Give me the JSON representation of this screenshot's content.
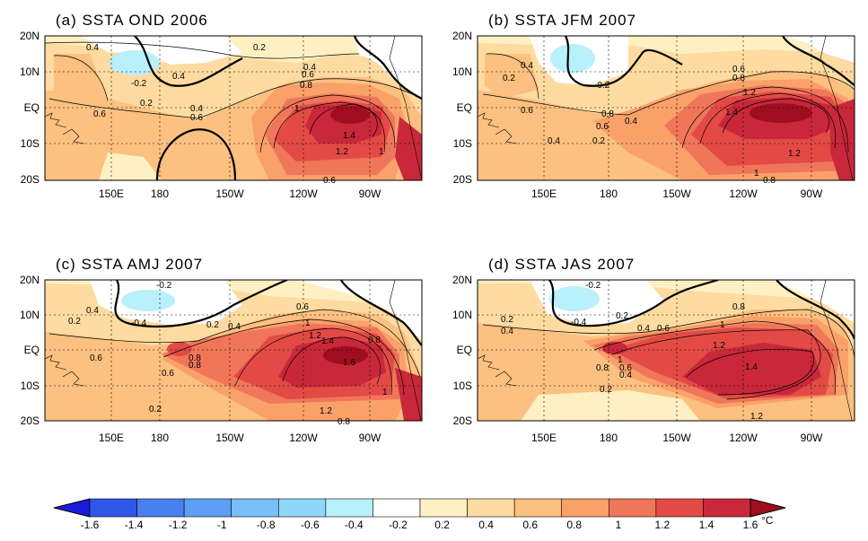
{
  "figure": {
    "panels": [
      {
        "id": "a",
        "title": "(a) SSTA OND 2006",
        "lat_labels": [
          "20N",
          "10N",
          "EQ",
          "10S",
          "20S"
        ],
        "lon_labels": [
          "150E",
          "180",
          "150W",
          "120W",
          "90W"
        ],
        "contour_labels": [
          "0.4",
          "0.2",
          "-0.2",
          "0.4",
          "0.2",
          "0.6",
          "0.4",
          "0.6",
          "0.8",
          "1",
          "1.4",
          "1.2",
          "1",
          "0.6",
          "0.4",
          "0.6",
          "0.2"
        ],
        "max_anomaly_c": 1.6,
        "min_anomaly_c": -0.4
      },
      {
        "id": "b",
        "title": "(b) SSTA JFM 2007",
        "lat_labels": [
          "20N",
          "10N",
          "EQ",
          "10S",
          "20S"
        ],
        "lon_labels": [
          "150E",
          "180",
          "150W",
          "120W",
          "90W"
        ],
        "contour_labels": [
          "0.4",
          "0.2",
          "-0.2",
          "0.6",
          "0.8",
          "0.6",
          "0.4",
          "0.2",
          "0.4",
          "0.6",
          "0.8",
          "1.2",
          "1.4",
          "1.2",
          "1",
          "0.8"
        ],
        "max_anomaly_c": 1.6,
        "min_anomaly_c": -0.4
      },
      {
        "id": "c",
        "title": "(c) SSTA AMJ 2007",
        "lat_labels": [
          "20N",
          "10N",
          "EQ",
          "10S",
          "20S"
        ],
        "lon_labels": [
          "150E",
          "180",
          "150W",
          "120W",
          "90W"
        ],
        "contour_labels": [
          "-0.2",
          "0.4",
          "0.2",
          "-0.4",
          "0.2",
          "0.4",
          "0.6",
          "0.6",
          "0.8",
          "0.6",
          "0.8",
          "1",
          "1.2",
          "1.4",
          "1.6",
          "0.8",
          "1",
          "1.2",
          "0.8",
          "0.2"
        ],
        "max_anomaly_c": 1.6,
        "min_anomaly_c": -0.4
      },
      {
        "id": "d",
        "title": "(d) SSTA JAS 2007",
        "lat_labels": [
          "20N",
          "10N",
          "EQ",
          "10S",
          "20S"
        ],
        "lon_labels": [
          "150E",
          "180",
          "150W",
          "120W",
          "90W"
        ],
        "contour_labels": [
          "-0.2",
          "0.2",
          "0.4",
          "-0.4",
          "0.2",
          "0.4",
          "0.6",
          "0.8",
          "1",
          "1.2",
          "1",
          "0.8",
          "0.6",
          "0.4",
          "0.2",
          "1.4",
          "1.2"
        ],
        "max_anomaly_c": 1.4,
        "min_anomaly_c": -0.4
      }
    ],
    "colorbar": {
      "labels": [
        "-1.6",
        "-1.4",
        "-1.2",
        "-1",
        "-0.8",
        "-0.6",
        "-0.4",
        "-0.2",
        "0.2",
        "0.4",
        "0.6",
        "0.8",
        "1",
        "1.2",
        "1.4",
        "1.6"
      ],
      "unit": "°C",
      "colors": [
        "#1c1cdb",
        "#2f57e8",
        "#4a7ff0",
        "#5e9ef5",
        "#78bff8",
        "#8fd7f8",
        "#b8f0fb",
        "#ffffff",
        "#fff0c3",
        "#fedba0",
        "#fcc080",
        "#f9a169",
        "#f0765a",
        "#e34a45",
        "#c8283a",
        "#a00d20"
      ]
    }
  }
}
